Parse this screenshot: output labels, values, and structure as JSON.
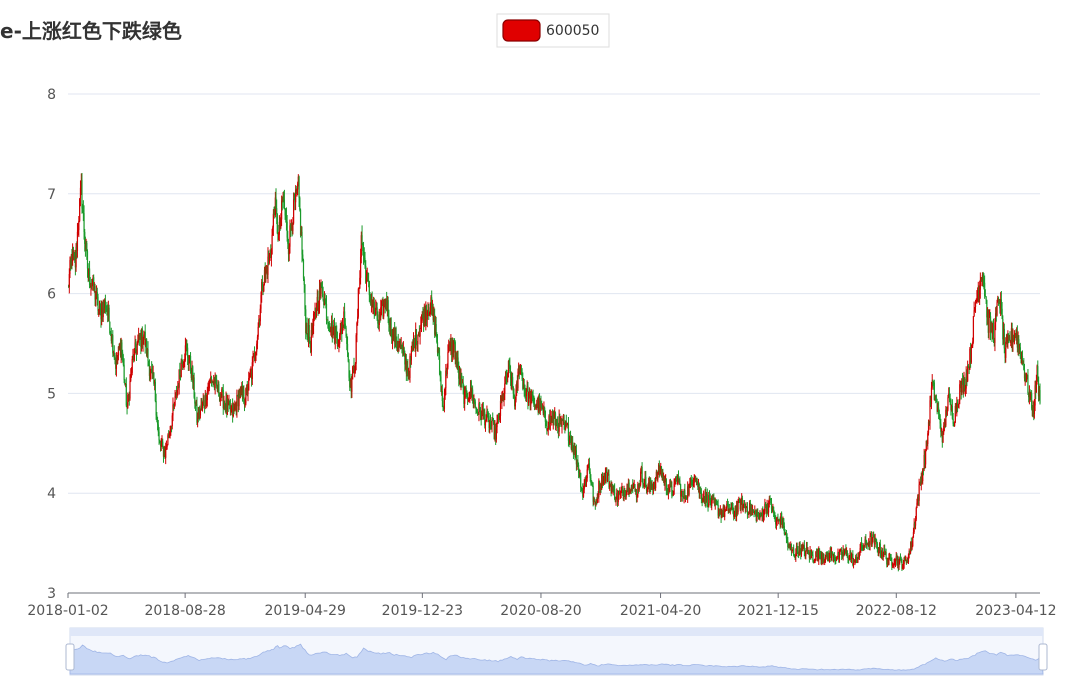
{
  "chart_data": {
    "type": "candlestick",
    "title": "e-上涨红色下跌绿色",
    "legend": {
      "placement": "top-center",
      "entries": [
        {
          "name": "600050",
          "color": "#e00000"
        }
      ]
    },
    "y_axis": {
      "min": 3,
      "max": 8,
      "ticks": [
        "3",
        "4",
        "5",
        "6",
        "7",
        "8"
      ]
    },
    "x_axis": {
      "labels": [
        "2018-01-02",
        "2018-08-28",
        "2019-04-29",
        "2019-12-23",
        "2020-08-20",
        "2021-04-20",
        "2021-12-15",
        "2022-08-12",
        "2023-04-12"
      ],
      "start": "2018-01-02",
      "end": "2023-05-31"
    },
    "grid": "horizontal",
    "colors": {
      "up": "#d00000",
      "down": "#1a9a2a",
      "axis": "#6e7079",
      "grid": "#e0e6f1",
      "zoom_fill": "#c8d7f5"
    },
    "data_zoom": {
      "start_percent": 0,
      "end_percent": 100
    },
    "series": [
      {
        "name": "600050",
        "close_series": [
          [
            "2018-01-02",
            6.05
          ],
          [
            "2018-01-10",
            6.4
          ],
          [
            "2018-01-17",
            6.3
          ],
          [
            "2018-01-24",
            6.8
          ],
          [
            "2018-01-29",
            7.05
          ],
          [
            "2018-02-05",
            6.55
          ],
          [
            "2018-02-12",
            6.2
          ],
          [
            "2018-02-26",
            6.0
          ],
          [
            "2018-03-07",
            5.8
          ],
          [
            "2018-03-19",
            5.9
          ],
          [
            "2018-03-28",
            5.7
          ],
          [
            "2018-04-09",
            5.3
          ],
          [
            "2018-04-20",
            5.5
          ],
          [
            "2018-05-02",
            4.85
          ],
          [
            "2018-05-14",
            5.35
          ],
          [
            "2018-05-24",
            5.5
          ],
          [
            "2018-06-05",
            5.6
          ],
          [
            "2018-06-15",
            5.3
          ],
          [
            "2018-06-27",
            5.05
          ],
          [
            "2018-07-06",
            4.5
          ],
          [
            "2018-07-18",
            4.4
          ],
          [
            "2018-07-30",
            4.7
          ],
          [
            "2018-08-09",
            4.95
          ],
          [
            "2018-08-20",
            5.3
          ],
          [
            "2018-08-30",
            5.45
          ],
          [
            "2018-09-11",
            5.2
          ],
          [
            "2018-09-21",
            4.75
          ],
          [
            "2018-10-08",
            4.95
          ],
          [
            "2018-10-19",
            5.15
          ],
          [
            "2018-10-31",
            5.05
          ],
          [
            "2018-11-12",
            4.95
          ],
          [
            "2018-11-22",
            4.85
          ],
          [
            "2018-12-04",
            4.8
          ],
          [
            "2018-12-17",
            5.0
          ],
          [
            "2018-12-28",
            4.95
          ],
          [
            "2019-01-10",
            5.2
          ],
          [
            "2019-01-22",
            5.6
          ],
          [
            "2019-02-01",
            6.1
          ],
          [
            "2019-02-18",
            6.4
          ],
          [
            "2019-02-26",
            6.9
          ],
          [
            "2019-03-06",
            6.55
          ],
          [
            "2019-03-15",
            6.95
          ],
          [
            "2019-03-26",
            6.5
          ],
          [
            "2019-04-04",
            6.8
          ],
          [
            "2019-04-15",
            7.05
          ],
          [
            "2019-04-24",
            6.3
          ],
          [
            "2019-04-30",
            5.7
          ],
          [
            "2019-05-10",
            5.5
          ],
          [
            "2019-05-22",
            5.9
          ],
          [
            "2019-06-03",
            6.05
          ],
          [
            "2019-06-14",
            5.75
          ],
          [
            "2019-06-26",
            5.6
          ],
          [
            "2019-07-08",
            5.55
          ],
          [
            "2019-07-18",
            5.8
          ],
          [
            "2019-07-30",
            5.05
          ],
          [
            "2019-08-09",
            5.35
          ],
          [
            "2019-08-21",
            6.55
          ],
          [
            "2019-09-02",
            6.1
          ],
          [
            "2019-09-12",
            5.9
          ],
          [
            "2019-09-25",
            5.7
          ],
          [
            "2019-10-10",
            5.95
          ],
          [
            "2019-10-22",
            5.6
          ],
          [
            "2019-11-01",
            5.55
          ],
          [
            "2019-11-13",
            5.4
          ],
          [
            "2019-11-25",
            5.2
          ],
          [
            "2019-12-05",
            5.5
          ],
          [
            "2019-12-17",
            5.65
          ],
          [
            "2019-12-27",
            5.8
          ],
          [
            "2020-01-08",
            5.9
          ],
          [
            "2020-01-20",
            5.6
          ],
          [
            "2020-02-03",
            4.85
          ],
          [
            "2020-02-13",
            5.4
          ],
          [
            "2020-02-25",
            5.5
          ],
          [
            "2020-03-06",
            5.2
          ],
          [
            "2020-03-18",
            4.95
          ],
          [
            "2020-03-30",
            5.05
          ],
          [
            "2020-04-10",
            4.85
          ],
          [
            "2020-04-22",
            4.8
          ],
          [
            "2020-05-08",
            4.7
          ],
          [
            "2020-05-20",
            4.6
          ],
          [
            "2020-06-03",
            4.95
          ],
          [
            "2020-06-15",
            5.25
          ],
          [
            "2020-06-29",
            4.9
          ],
          [
            "2020-07-07",
            5.3
          ],
          [
            "2020-07-17",
            5.05
          ],
          [
            "2020-07-29",
            4.95
          ],
          [
            "2020-08-10",
            4.9
          ],
          [
            "2020-08-20",
            4.85
          ],
          [
            "2020-09-01",
            4.7
          ],
          [
            "2020-09-11",
            4.75
          ],
          [
            "2020-09-23",
            4.7
          ],
          [
            "2020-10-12",
            4.65
          ],
          [
            "2020-10-22",
            4.5
          ],
          [
            "2020-11-03",
            4.3
          ],
          [
            "2020-11-13",
            4.0
          ],
          [
            "2020-11-25",
            4.3
          ],
          [
            "2020-12-07",
            3.85
          ],
          [
            "2020-12-17",
            4.1
          ],
          [
            "2020-12-29",
            4.2
          ],
          [
            "2021-01-11",
            4.05
          ],
          [
            "2021-01-21",
            3.95
          ],
          [
            "2021-02-02",
            4.0
          ],
          [
            "2021-02-18",
            4.1
          ],
          [
            "2021-03-02",
            4.0
          ],
          [
            "2021-03-12",
            4.2
          ],
          [
            "2021-03-24",
            4.05
          ],
          [
            "2021-04-07",
            4.1
          ],
          [
            "2021-04-19",
            4.25
          ],
          [
            "2021-04-29",
            4.1
          ],
          [
            "2021-05-13",
            4.0
          ],
          [
            "2021-05-25",
            4.15
          ],
          [
            "2021-06-04",
            3.95
          ],
          [
            "2021-06-17",
            4.05
          ],
          [
            "2021-06-29",
            4.2
          ],
          [
            "2021-07-09",
            4.0
          ],
          [
            "2021-07-21",
            3.95
          ],
          [
            "2021-08-02",
            3.9
          ],
          [
            "2021-08-12",
            3.85
          ],
          [
            "2021-08-24",
            3.8
          ],
          [
            "2021-09-06",
            3.85
          ],
          [
            "2021-09-17",
            3.8
          ],
          [
            "2021-09-29",
            3.9
          ],
          [
            "2021-10-15",
            3.85
          ],
          [
            "2021-10-27",
            3.8
          ],
          [
            "2021-11-08",
            3.75
          ],
          [
            "2021-11-18",
            3.85
          ],
          [
            "2021-11-30",
            3.9
          ],
          [
            "2021-12-10",
            3.7
          ],
          [
            "2021-12-22",
            3.75
          ],
          [
            "2022-01-05",
            3.45
          ],
          [
            "2022-01-17",
            3.4
          ],
          [
            "2022-01-27",
            3.45
          ],
          [
            "2022-02-15",
            3.4
          ],
          [
            "2022-02-25",
            3.35
          ],
          [
            "2022-03-09",
            3.4
          ],
          [
            "2022-03-21",
            3.35
          ],
          [
            "2022-04-01",
            3.38
          ],
          [
            "2022-04-14",
            3.35
          ],
          [
            "2022-04-26",
            3.4
          ],
          [
            "2022-05-10",
            3.38
          ],
          [
            "2022-05-20",
            3.3
          ],
          [
            "2022-06-01",
            3.45
          ],
          [
            "2022-06-14",
            3.5
          ],
          [
            "2022-06-24",
            3.55
          ],
          [
            "2022-07-06",
            3.45
          ],
          [
            "2022-07-18",
            3.4
          ],
          [
            "2022-07-28",
            3.3
          ],
          [
            "2022-08-09",
            3.35
          ],
          [
            "2022-08-19",
            3.3
          ],
          [
            "2022-08-31",
            3.3
          ],
          [
            "2022-09-13",
            3.5
          ],
          [
            "2022-09-23",
            3.9
          ],
          [
            "2022-10-12",
            4.45
          ],
          [
            "2022-10-24",
            5.1
          ],
          [
            "2022-11-03",
            4.85
          ],
          [
            "2022-11-15",
            4.55
          ],
          [
            "2022-11-25",
            4.95
          ],
          [
            "2022-12-07",
            4.75
          ],
          [
            "2022-12-19",
            5.05
          ],
          [
            "2022-12-29",
            5.1
          ],
          [
            "2023-01-10",
            5.4
          ],
          [
            "2023-01-20",
            5.9
          ],
          [
            "2023-02-03",
            6.25
          ],
          [
            "2023-02-15",
            5.7
          ],
          [
            "2023-02-27",
            5.6
          ],
          [
            "2023-03-09",
            6.0
          ],
          [
            "2023-03-21",
            5.4
          ],
          [
            "2023-03-31",
            5.55
          ],
          [
            "2023-04-12",
            5.6
          ],
          [
            "2023-04-24",
            5.35
          ],
          [
            "2023-05-05",
            5.1
          ],
          [
            "2023-05-17",
            4.8
          ],
          [
            "2023-05-25",
            5.2
          ],
          [
            "2023-05-31",
            4.9
          ]
        ]
      }
    ]
  }
}
